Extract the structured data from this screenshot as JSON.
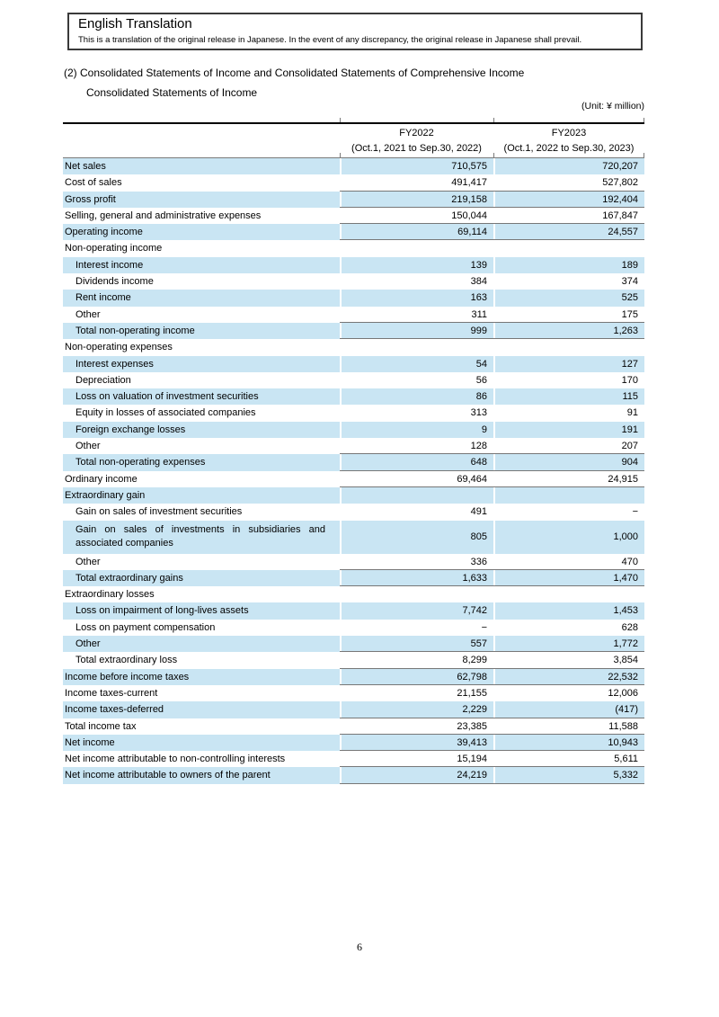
{
  "page": {
    "translation_box": {
      "title": "English Translation",
      "body": "This is a translation of the original release in Japanese. In the event of any discrepancy, the original release in Japanese shall prevail."
    },
    "heading_line1": "(2) Consolidated Statements of Income and Consolidated Statements of Comprehensive Income",
    "heading_line2": "Consolidated Statements of Income",
    "unit_label": "(Unit: ¥ million)",
    "page_number": "6"
  },
  "colors": {
    "row_highlight": "#c9e5f3",
    "rule_line": "#777777",
    "table_top_border": "#000000"
  },
  "table": {
    "columns": [
      {
        "fiscal_year": "FY2022",
        "period": "(Oct.1, 2021 to Sep.30, 2022)"
      },
      {
        "fiscal_year": "FY2023",
        "period": "(Oct.1, 2022 to Sep.30, 2023)"
      }
    ],
    "rows": [
      {
        "label": "Net sales",
        "fy2022": "710,575",
        "fy2023": "720,207",
        "indent": false,
        "highlight": true,
        "line": false,
        "tall": false
      },
      {
        "label": "Cost of sales",
        "fy2022": "491,417",
        "fy2023": "527,802",
        "indent": false,
        "highlight": false,
        "line": true,
        "tall": false
      },
      {
        "label": "Gross profit",
        "fy2022": "219,158",
        "fy2023": "192,404",
        "indent": false,
        "highlight": true,
        "line": true,
        "tall": false
      },
      {
        "label": "Selling, general and administrative expenses",
        "fy2022": "150,044",
        "fy2023": "167,847",
        "indent": false,
        "highlight": false,
        "line": true,
        "tall": false
      },
      {
        "label": "Operating income",
        "fy2022": "69,114",
        "fy2023": "24,557",
        "indent": false,
        "highlight": true,
        "line": true,
        "tall": false
      },
      {
        "label": "Non-operating income",
        "fy2022": "",
        "fy2023": "",
        "indent": false,
        "highlight": false,
        "line": false,
        "tall": false
      },
      {
        "label": "Interest income",
        "fy2022": "139",
        "fy2023": "189",
        "indent": true,
        "highlight": true,
        "line": false,
        "tall": false
      },
      {
        "label": "Dividends income",
        "fy2022": "384",
        "fy2023": "374",
        "indent": true,
        "highlight": false,
        "line": false,
        "tall": false
      },
      {
        "label": "Rent income",
        "fy2022": "163",
        "fy2023": "525",
        "indent": true,
        "highlight": true,
        "line": false,
        "tall": false
      },
      {
        "label": "Other",
        "fy2022": "311",
        "fy2023": "175",
        "indent": true,
        "highlight": false,
        "line": true,
        "tall": false
      },
      {
        "label": "Total non-operating income",
        "fy2022": "999",
        "fy2023": "1,263",
        "indent": true,
        "highlight": true,
        "line": true,
        "tall": false
      },
      {
        "label": "Non-operating expenses",
        "fy2022": "",
        "fy2023": "",
        "indent": false,
        "highlight": false,
        "line": false,
        "tall": false
      },
      {
        "label": "Interest expenses",
        "fy2022": "54",
        "fy2023": "127",
        "indent": true,
        "highlight": true,
        "line": false,
        "tall": false
      },
      {
        "label": "Depreciation",
        "fy2022": "56",
        "fy2023": "170",
        "indent": true,
        "highlight": false,
        "line": false,
        "tall": false
      },
      {
        "label": "Loss on valuation of investment securities",
        "fy2022": "86",
        "fy2023": "115",
        "indent": true,
        "highlight": true,
        "line": false,
        "tall": false
      },
      {
        "label": "Equity in losses of associated companies",
        "fy2022": "313",
        "fy2023": "91",
        "indent": true,
        "highlight": false,
        "line": false,
        "tall": false
      },
      {
        "label": "Foreign exchange losses",
        "fy2022": "9",
        "fy2023": "191",
        "indent": true,
        "highlight": true,
        "line": false,
        "tall": false
      },
      {
        "label": "Other",
        "fy2022": "128",
        "fy2023": "207",
        "indent": true,
        "highlight": false,
        "line": true,
        "tall": false
      },
      {
        "label": "Total non-operating expenses",
        "fy2022": "648",
        "fy2023": "904",
        "indent": true,
        "highlight": true,
        "line": true,
        "tall": false
      },
      {
        "label": "Ordinary income",
        "fy2022": "69,464",
        "fy2023": "24,915",
        "indent": false,
        "highlight": false,
        "line": true,
        "tall": false
      },
      {
        "label": "Extraordinary gain",
        "fy2022": "",
        "fy2023": "",
        "indent": false,
        "highlight": true,
        "line": false,
        "tall": false
      },
      {
        "label": "Gain on sales of investment securities",
        "fy2022": "491",
        "fy2023": "−",
        "indent": true,
        "highlight": false,
        "line": false,
        "tall": false
      },
      {
        "label": "Gain on sales of investments in subsidiaries and associated companies",
        "fy2022": "805",
        "fy2023": "1,000",
        "indent": true,
        "highlight": true,
        "line": false,
        "tall": true
      },
      {
        "label": "Other",
        "fy2022": "336",
        "fy2023": "470",
        "indent": true,
        "highlight": false,
        "line": true,
        "tall": false
      },
      {
        "label": "Total extraordinary gains",
        "fy2022": "1,633",
        "fy2023": "1,470",
        "indent": true,
        "highlight": true,
        "line": true,
        "tall": false
      },
      {
        "label": "Extraordinary losses",
        "fy2022": "",
        "fy2023": "",
        "indent": false,
        "highlight": false,
        "line": false,
        "tall": false
      },
      {
        "label": "Loss on impairment of long-lives assets",
        "fy2022": "7,742",
        "fy2023": "1,453",
        "indent": true,
        "highlight": true,
        "line": false,
        "tall": false
      },
      {
        "label": "Loss on payment compensation",
        "fy2022": "−",
        "fy2023": "628",
        "indent": true,
        "highlight": false,
        "line": false,
        "tall": false
      },
      {
        "label": "Other",
        "fy2022": "557",
        "fy2023": "1,772",
        "indent": true,
        "highlight": true,
        "line": true,
        "tall": false
      },
      {
        "label": "Total extraordinary loss",
        "fy2022": "8,299",
        "fy2023": "3,854",
        "indent": true,
        "highlight": false,
        "line": true,
        "tall": false
      },
      {
        "label": "Income before income taxes",
        "fy2022": "62,798",
        "fy2023": "22,532",
        "indent": false,
        "highlight": true,
        "line": true,
        "tall": false
      },
      {
        "label": "Income taxes-current",
        "fy2022": "21,155",
        "fy2023": "12,006",
        "indent": false,
        "highlight": false,
        "line": false,
        "tall": false
      },
      {
        "label": "Income taxes-deferred",
        "fy2022": "2,229",
        "fy2023": "(417)",
        "indent": false,
        "highlight": true,
        "line": true,
        "tall": false
      },
      {
        "label": "Total income tax",
        "fy2022": "23,385",
        "fy2023": "11,588",
        "indent": false,
        "highlight": false,
        "line": true,
        "tall": false
      },
      {
        "label": "Net income",
        "fy2022": "39,413",
        "fy2023": "10,943",
        "indent": false,
        "highlight": true,
        "line": true,
        "tall": false
      },
      {
        "label": "Net income attributable to non-controlling interests",
        "fy2022": "15,194",
        "fy2023": "5,611",
        "indent": false,
        "highlight": false,
        "line": true,
        "tall": false
      },
      {
        "label": "Net income attributable to owners of the parent",
        "fy2022": "24,219",
        "fy2023": "5,332",
        "indent": false,
        "highlight": true,
        "line": true,
        "tall": false
      }
    ]
  }
}
